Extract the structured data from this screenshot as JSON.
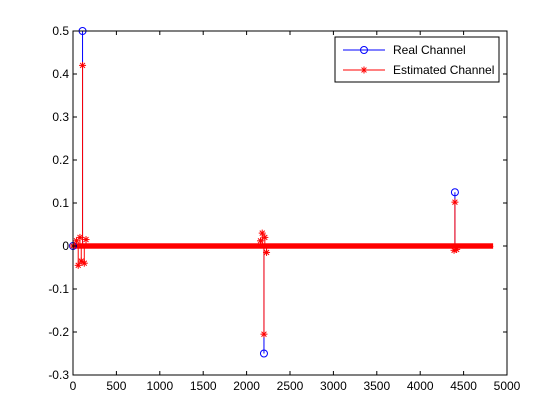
{
  "chart_data": {
    "type": "stem",
    "xlim": [
      0,
      5000
    ],
    "ylim": [
      -0.3,
      0.5
    ],
    "x_ticks": [
      0,
      500,
      1000,
      1500,
      2000,
      2500,
      3000,
      3500,
      4000,
      4500,
      5000
    ],
    "y_ticks": [
      -0.3,
      -0.2,
      -0.1,
      0,
      0.1,
      0.2,
      0.3,
      0.4,
      0.5
    ],
    "x_tick_labels": [
      "0",
      "500",
      "1000",
      "1500",
      "2000",
      "2500",
      "3000",
      "3500",
      "4000",
      "4500",
      "5000"
    ],
    "y_tick_labels": [
      "-0.3",
      "-0.2",
      "-0.1",
      "0",
      "0.1",
      "0.2",
      "0.3",
      "0.4",
      "0.5"
    ],
    "legend_position": "top-right",
    "grid": false,
    "series": [
      {
        "name": "Real Channel",
        "color": "#0000ff",
        "marker": "circle",
        "points": [
          {
            "x": 0,
            "y": 0
          },
          {
            "x": 110,
            "y": 0.5
          },
          {
            "x": 2200,
            "y": -0.25
          },
          {
            "x": 4400,
            "y": 0.125
          }
        ]
      },
      {
        "name": "Estimated Channel",
        "color": "#ff0000",
        "marker": "asterisk",
        "x_range": [
          0,
          4840
        ],
        "noise_amplitude": 0.004,
        "points": [
          {
            "x": 0,
            "y": 0
          },
          {
            "x": 110,
            "y": 0.42
          },
          {
            "x": 2200,
            "y": -0.205
          },
          {
            "x": 4400,
            "y": 0.102
          },
          {
            "x": 60,
            "y": -0.045
          },
          {
            "x": 80,
            "y": 0.02
          },
          {
            "x": 95,
            "y": -0.035
          },
          {
            "x": 130,
            "y": -0.04
          },
          {
            "x": 150,
            "y": 0.015
          },
          {
            "x": 40,
            "y": 0.012
          },
          {
            "x": 2180,
            "y": 0.03
          },
          {
            "x": 2210,
            "y": 0.02
          },
          {
            "x": 2230,
            "y": -0.015
          },
          {
            "x": 2160,
            "y": 0.012
          },
          {
            "x": 4390,
            "y": -0.01
          },
          {
            "x": 4420,
            "y": -0.008
          }
        ]
      }
    ]
  }
}
